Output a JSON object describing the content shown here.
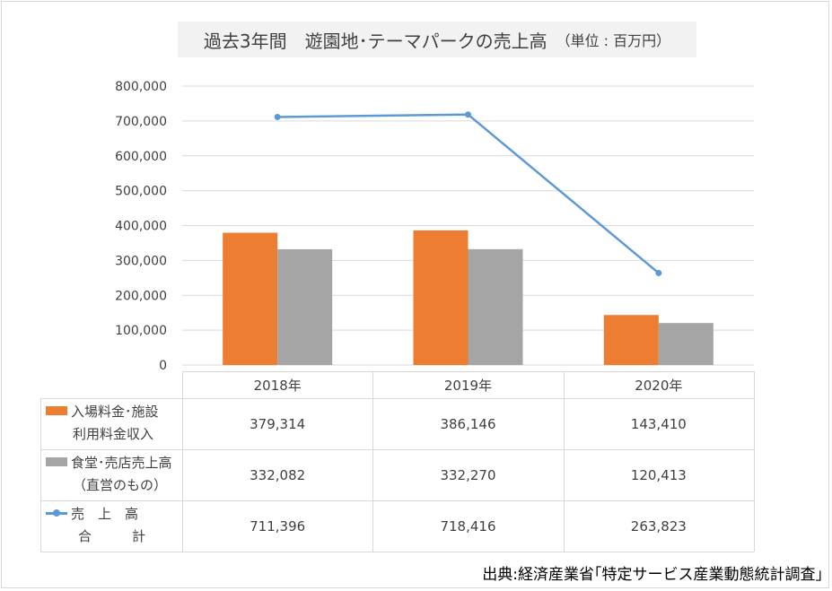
{
  "title": {
    "main": "過去3年間　遊園地･テーマパークの売上高",
    "unit": "（単位 : 百万円）"
  },
  "colors": {
    "admission": "#ed7d31",
    "food": "#a5a5a5",
    "total": "#5b9bd5"
  },
  "chart_data": {
    "type": "bar",
    "categories": [
      "2018年",
      "2019年",
      "2020年"
    ],
    "ylim": [
      0,
      800000
    ],
    "yticks": [
      "0",
      "100,000",
      "200,000",
      "300,000",
      "400,000",
      "500,000",
      "600,000",
      "700,000",
      "800,000"
    ],
    "series": [
      {
        "name": "入場料金･施設利用料金収入",
        "label_lines": [
          "入場料金･施設",
          "利用料金収入"
        ],
        "type": "bar",
        "values": [
          379314,
          386146,
          143410
        ],
        "labels": [
          "379,314",
          "386,146",
          "143,410"
        ]
      },
      {
        "name": "食堂･売店売上高（直営のもの）",
        "label_lines": [
          "食堂･売店売上高",
          "（直営のもの）"
        ],
        "type": "bar",
        "values": [
          332082,
          332270,
          120413
        ],
        "labels": [
          "332,082",
          "332,270",
          "120,413"
        ]
      },
      {
        "name": "売上高合計",
        "label_lines": [
          "売　上　高",
          "合　　　計"
        ],
        "type": "line",
        "values": [
          711396,
          718416,
          263823
        ],
        "labels": [
          "711,396",
          "718,416",
          "263,823"
        ]
      }
    ],
    "grid": true,
    "legend": "data-table"
  },
  "source": "出典:経済産業省｢特定サービス産業動態統計調査｣"
}
